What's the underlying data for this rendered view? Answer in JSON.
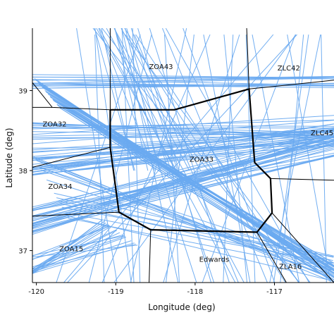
{
  "chart_data": {
    "type": "map",
    "xlabel": "Longitude (deg)",
    "ylabel": "Latitude (deg)",
    "xlim": [
      -120.05,
      -116.25
    ],
    "ylim": [
      36.6,
      39.78
    ],
    "x_ticks": [
      -120,
      -119,
      -118,
      -117
    ],
    "y_ticks": [
      37,
      38,
      39
    ],
    "grid": false,
    "colors": {
      "flight_tracks": "#6aaaf0",
      "sector_boundary": "#000000",
      "highlighted_sector": "#000000",
      "background": "#ffffff"
    },
    "sector_labels": [
      {
        "name": "ZOA43",
        "lon": -118.43,
        "lat": 39.27
      },
      {
        "name": "ZLC42",
        "lon": -116.82,
        "lat": 39.25
      },
      {
        "name": "ZOA32",
        "lon": -119.77,
        "lat": 38.55
      },
      {
        "name": "ZLC45",
        "lon": -116.4,
        "lat": 38.44
      },
      {
        "name": "ZOA33",
        "lon": -117.92,
        "lat": 38.11
      },
      {
        "name": "ZOA34",
        "lon": -119.7,
        "lat": 37.77
      },
      {
        "name": "ZOA15",
        "lon": -119.56,
        "lat": 36.99
      },
      {
        "name": "Edwards",
        "lon": -117.76,
        "lat": 36.86
      },
      {
        "name": "ZLA16",
        "lon": -116.8,
        "lat": 36.77
      }
    ],
    "highlighted_sector": {
      "name": "ZOA33",
      "boundary": [
        [
          -119.07,
          38.76
        ],
        [
          -118.26,
          38.76
        ],
        [
          -117.32,
          39.02
        ],
        [
          -117.25,
          38.1
        ],
        [
          -117.05,
          37.9
        ],
        [
          -117.03,
          37.47
        ],
        [
          -117.22,
          37.23
        ],
        [
          -118.56,
          37.26
        ],
        [
          -118.96,
          37.48
        ],
        [
          -119.07,
          38.29
        ],
        [
          -119.07,
          38.76
        ]
      ]
    },
    "sector_boundaries": [
      [
        [
          -120.05,
          39.1
        ],
        [
          -119.8,
          38.79
        ],
        [
          -119.07,
          38.76
        ]
      ],
      [
        [
          -119.8,
          38.79
        ],
        [
          -120.05,
          38.79
        ]
      ],
      [
        [
          -120.05,
          38.04
        ],
        [
          -119.07,
          38.29
        ]
      ],
      [
        [
          -120.05,
          37.43
        ],
        [
          -118.96,
          37.48
        ]
      ],
      [
        [
          -119.07,
          38.76
        ],
        [
          -119.07,
          39.78
        ]
      ],
      [
        [
          -117.32,
          39.02
        ],
        [
          -117.35,
          39.78
        ]
      ],
      [
        [
          -117.32,
          39.02
        ],
        [
          -116.25,
          39.13
        ]
      ],
      [
        [
          -117.05,
          37.9
        ],
        [
          -116.25,
          37.88
        ]
      ],
      [
        [
          -117.03,
          37.47
        ],
        [
          -116.25,
          36.6
        ]
      ],
      [
        [
          -117.22,
          37.23
        ],
        [
          -116.85,
          36.6
        ]
      ],
      [
        [
          -118.56,
          37.26
        ],
        [
          -118.58,
          36.6
        ]
      ]
    ],
    "track_bundles": [
      {
        "count": 26,
        "from": [
          [
            -120.05,
            38.28
          ],
          [
            -120.05,
            37.92
          ]
        ],
        "to": [
          [
            -116.25,
            38.6
          ],
          [
            -116.25,
            38.28
          ]
        ]
      },
      {
        "count": 30,
        "from": [
          [
            -120.05,
            37.55
          ],
          [
            -120.05,
            37.2
          ]
        ],
        "to": [
          [
            -116.25,
            38.52
          ],
          [
            -116.25,
            38.15
          ]
        ]
      },
      {
        "count": 14,
        "from": [
          [
            -120.05,
            38.6
          ],
          [
            -120.05,
            38.3
          ]
        ],
        "to": [
          [
            -116.25,
            38.7
          ],
          [
            -116.25,
            38.4
          ]
        ]
      },
      {
        "count": 30,
        "from": [
          [
            -120.05,
            39.18
          ],
          [
            -119.7,
            38.78
          ]
        ],
        "to": [
          [
            -116.25,
            36.85
          ],
          [
            -116.25,
            36.6
          ]
        ]
      },
      {
        "count": 16,
        "from": [
          [
            -120.05,
            38.2
          ],
          [
            -119.6,
            37.4
          ]
        ],
        "to": [
          [
            -116.3,
            36.62
          ],
          [
            -116.25,
            36.95
          ]
        ]
      },
      {
        "count": 18,
        "from": [
          [
            -119.5,
            39.78
          ],
          [
            -118.1,
            39.78
          ]
        ],
        "to": [
          [
            -119.0,
            36.6
          ],
          [
            -116.5,
            36.6
          ]
        ]
      },
      {
        "count": 24,
        "from": [
          [
            -120.05,
            39.7
          ],
          [
            -116.25,
            39.7
          ]
        ],
        "to": [
          [
            -120.05,
            36.6
          ],
          [
            -116.25,
            36.6
          ]
        ]
      },
      {
        "count": 14,
        "from": [
          [
            -120.05,
            39.2
          ],
          [
            -120.05,
            39.02
          ]
        ],
        "to": [
          [
            -116.25,
            39.18
          ],
          [
            -116.25,
            39.02
          ]
        ]
      },
      {
        "count": 20,
        "from": [
          [
            -120.05,
            36.95
          ],
          [
            -120.05,
            36.7
          ]
        ],
        "to": [
          [
            -119.2,
            37.4
          ],
          [
            -118.7,
            37.05
          ]
        ]
      },
      {
        "count": 10,
        "from": [
          [
            -119.3,
            39.78
          ],
          [
            -118.7,
            39.78
          ]
        ],
        "to": [
          [
            -118.8,
            38.0
          ],
          [
            -117.9,
            38.0
          ]
        ]
      }
    ]
  }
}
